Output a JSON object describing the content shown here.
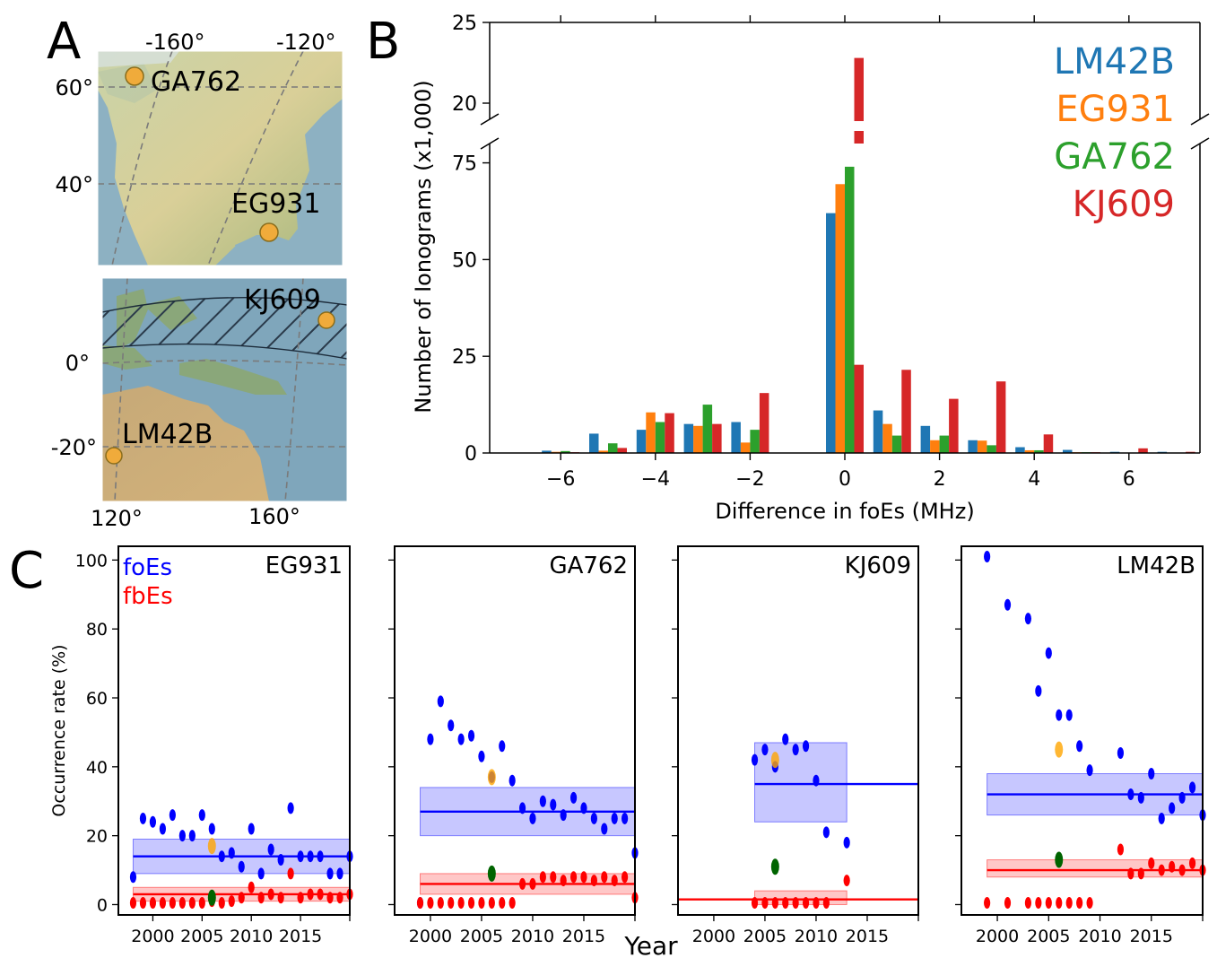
{
  "panels": {
    "a": "A",
    "b": "B",
    "c": "C"
  },
  "map": {
    "top": {
      "lon_ticks": [
        "-160°",
        "-120°"
      ],
      "lat_ticks": [
        "60°",
        "40°"
      ],
      "stations": [
        "GA762",
        "EG931"
      ]
    },
    "bottom": {
      "lat_ticks": [
        "0°",
        "-20°"
      ],
      "lon_ticks": [
        "120°",
        "160°"
      ],
      "stations": [
        "KJ609",
        "LM42B"
      ]
    },
    "colors": {
      "land": "#c9c79a",
      "sea": "#7fa6bb",
      "station": "#f0ab3b"
    }
  },
  "chart_data": [
    {
      "type": "bar",
      "panel": "B",
      "xlabel": "Difference in foEs (MHz)",
      "ylabel": "Number of Ionograms (x1,000)",
      "x_ticks": [
        -6,
        -4,
        -2,
        0,
        2,
        4,
        6
      ],
      "y_ticks_lower": [
        0,
        25,
        50,
        75
      ],
      "y_ticks_upper": [
        20,
        25
      ],
      "ylim_lower": [
        0,
        80
      ],
      "ylim_upper": [
        19,
        25
      ],
      "categories": [
        -7,
        -6,
        -5,
        -4,
        -3,
        -2,
        -1,
        0,
        1,
        2,
        3,
        4,
        5,
        6,
        7
      ],
      "legend_position": "top-right",
      "series": [
        {
          "name": "LM42B",
          "color": "#1f77b4",
          "values": [
            0,
            0.6,
            5,
            6,
            7.5,
            8,
            0,
            62,
            11,
            7,
            3.3,
            1.5,
            0.8,
            0.3,
            0.3
          ]
        },
        {
          "name": "EG931",
          "color": "#ff7f0e",
          "values": [
            0,
            0.3,
            0.6,
            10.5,
            7,
            2.7,
            0,
            69.5,
            7.5,
            3.3,
            3.2,
            0.7,
            0.2,
            0.1,
            0.1
          ]
        },
        {
          "name": "GA762",
          "color": "#2ca02c",
          "values": [
            0,
            0.5,
            2.5,
            8,
            12.5,
            6,
            0,
            74,
            4.5,
            4.5,
            2,
            0.7,
            0.2,
            0.1,
            0.1
          ]
        },
        {
          "name": "KJ609",
          "color": "#d62728",
          "values": [
            0,
            0.2,
            1.3,
            10.3,
            7.5,
            15.5,
            0,
            22.8,
            21.5,
            14,
            18.5,
            4.8,
            0.2,
            1.2,
            0.3
          ]
        }
      ]
    },
    {
      "type": "scatter",
      "panel": "C",
      "xlabel": "Year",
      "ylabel": "Occurrence rate (%)",
      "y_ticks": [
        0,
        20,
        40,
        60,
        80,
        100
      ],
      "ylim": [
        -3,
        104
      ],
      "xlim": [
        1996.5,
        2020
      ],
      "x_ticks": [
        2000,
        2005,
        2010,
        2015
      ],
      "legend": [
        {
          "label": "foEs",
          "color": "#0000ff"
        },
        {
          "label": "fbEs",
          "color": "#ff0000"
        }
      ],
      "highlight_colors": {
        "foEs_mark": "#ffa500",
        "fbEs_mark": "#006400"
      },
      "subplots": [
        {
          "station": "EG931",
          "foEs": [
            [
              1998,
              8
            ],
            [
              1999,
              25
            ],
            [
              2000,
              24
            ],
            [
              2001,
              22
            ],
            [
              2002,
              26
            ],
            [
              2003,
              20
            ],
            [
              2004,
              20
            ],
            [
              2005,
              26
            ],
            [
              2006,
              22
            ],
            [
              2007,
              14
            ],
            [
              2008,
              15
            ],
            [
              2009,
              11
            ],
            [
              2010,
              22
            ],
            [
              2011,
              9
            ],
            [
              2012,
              16
            ],
            [
              2013,
              13
            ],
            [
              2014,
              28
            ],
            [
              2015,
              14
            ],
            [
              2016,
              14
            ],
            [
              2017,
              14
            ],
            [
              2018,
              9
            ],
            [
              2019,
              9
            ],
            [
              2020,
              14
            ]
          ],
          "foEs_mark": [
            2006,
            17
          ],
          "foEs_mean": 14,
          "foEs_band": [
            9,
            19
          ],
          "fbEs": [
            [
              1998,
              0.5
            ],
            [
              1999,
              0.5
            ],
            [
              2000,
              0.5
            ],
            [
              2001,
              0.5
            ],
            [
              2002,
              0.5
            ],
            [
              2003,
              0.5
            ],
            [
              2004,
              0.5
            ],
            [
              2005,
              0.5
            ],
            [
              2006,
              1
            ],
            [
              2007,
              0.5
            ],
            [
              2008,
              1
            ],
            [
              2009,
              2
            ],
            [
              2010,
              5
            ],
            [
              2011,
              2
            ],
            [
              2012,
              3
            ],
            [
              2013,
              2
            ],
            [
              2014,
              9
            ],
            [
              2015,
              2
            ],
            [
              2016,
              3
            ],
            [
              2017,
              3
            ],
            [
              2018,
              2
            ],
            [
              2019,
              2
            ],
            [
              2020,
              3
            ]
          ],
          "fbEs_mark": [
            2006,
            2
          ],
          "fbEs_mean": 3,
          "fbEs_band": [
            1,
            5
          ],
          "band_x": [
            1998,
            2020
          ]
        },
        {
          "station": "GA762",
          "foEs": [
            [
              1999,
              0.5
            ],
            [
              2000,
              48
            ],
            [
              2001,
              59
            ],
            [
              2002,
              52
            ],
            [
              2003,
              48
            ],
            [
              2004,
              49
            ],
            [
              2005,
              43
            ],
            [
              2006,
              37
            ],
            [
              2007,
              46
            ],
            [
              2008,
              36
            ],
            [
              2009,
              28
            ],
            [
              2010,
              25
            ],
            [
              2011,
              30
            ],
            [
              2012,
              29
            ],
            [
              2013,
              26
            ],
            [
              2014,
              31
            ],
            [
              2015,
              28
            ],
            [
              2016,
              25
            ],
            [
              2017,
              22
            ],
            [
              2018,
              25
            ],
            [
              2019,
              25
            ],
            [
              2020,
              15
            ]
          ],
          "foEs_mark": [
            2006,
            37
          ],
          "foEs_mean": 27,
          "foEs_band": [
            20,
            34
          ],
          "fbEs": [
            [
              1999,
              0.5
            ],
            [
              2000,
              0.5
            ],
            [
              2001,
              0.5
            ],
            [
              2002,
              0.5
            ],
            [
              2003,
              0.5
            ],
            [
              2004,
              0.5
            ],
            [
              2005,
              0.5
            ],
            [
              2006,
              0.5
            ],
            [
              2007,
              0.5
            ],
            [
              2008,
              0.5
            ],
            [
              2009,
              6
            ],
            [
              2010,
              6
            ],
            [
              2011,
              8
            ],
            [
              2012,
              8
            ],
            [
              2013,
              7
            ],
            [
              2014,
              8
            ],
            [
              2015,
              8
            ],
            [
              2016,
              7
            ],
            [
              2017,
              8
            ],
            [
              2018,
              7
            ],
            [
              2019,
              8
            ],
            [
              2020,
              2
            ]
          ],
          "fbEs_mark": [
            2006,
            9
          ],
          "fbEs_mean": 6,
          "fbEs_band": [
            3,
            9
          ],
          "band_x": [
            1999,
            2020
          ]
        },
        {
          "station": "KJ609",
          "foEs": [
            [
              2004,
              42
            ],
            [
              2005,
              45
            ],
            [
              2006,
              40
            ],
            [
              2007,
              48
            ],
            [
              2008,
              45
            ],
            [
              2009,
              46
            ],
            [
              2010,
              36
            ],
            [
              2011,
              21
            ],
            [
              2013,
              18
            ]
          ],
          "foEs_mark": [
            2006,
            42
          ],
          "foEs_mean": 35,
          "foEs_band": [
            24,
            47
          ],
          "fbEs": [
            [
              2004,
              0.5
            ],
            [
              2005,
              0.5
            ],
            [
              2006,
              0.5
            ],
            [
              2007,
              0.5
            ],
            [
              2008,
              0.5
            ],
            [
              2009,
              0.5
            ],
            [
              2010,
              0.5
            ],
            [
              2011,
              0.5
            ],
            [
              2013,
              7
            ]
          ],
          "fbEs_mark": [
            2006,
            11
          ],
          "fbEs_mean": 1.5,
          "fbEs_band": [
            0,
            4
          ],
          "band_x": [
            2004,
            2013
          ]
        },
        {
          "station": "LM42B",
          "foEs": [
            [
              1999,
              101
            ],
            [
              2001,
              87
            ],
            [
              2003,
              83
            ],
            [
              2004,
              62
            ],
            [
              2005,
              73
            ],
            [
              2006,
              55
            ],
            [
              2007,
              55
            ],
            [
              2008,
              46
            ],
            [
              2009,
              39
            ],
            [
              2012,
              44
            ],
            [
              2013,
              32
            ],
            [
              2014,
              31
            ],
            [
              2015,
              38
            ],
            [
              2016,
              25
            ],
            [
              2017,
              28
            ],
            [
              2018,
              31
            ],
            [
              2019,
              34
            ],
            [
              2020,
              26
            ]
          ],
          "foEs_mark": [
            2006,
            45
          ],
          "foEs_mean": 32,
          "foEs_band": [
            26,
            38
          ],
          "fbEs": [
            [
              1999,
              0.5
            ],
            [
              2001,
              0.5
            ],
            [
              2003,
              0.5
            ],
            [
              2004,
              0.5
            ],
            [
              2005,
              0.5
            ],
            [
              2006,
              0.5
            ],
            [
              2007,
              0.5
            ],
            [
              2008,
              0.5
            ],
            [
              2009,
              0.5
            ],
            [
              2012,
              16
            ],
            [
              2013,
              9
            ],
            [
              2014,
              9
            ],
            [
              2015,
              12
            ],
            [
              2016,
              10
            ],
            [
              2017,
              11
            ],
            [
              2018,
              10
            ],
            [
              2019,
              12
            ],
            [
              2020,
              10
            ]
          ],
          "fbEs_mark": [
            2006,
            13
          ],
          "fbEs_mean": 10,
          "fbEs_band": [
            8,
            13
          ],
          "band_x": [
            1999,
            2020
          ]
        }
      ]
    }
  ]
}
